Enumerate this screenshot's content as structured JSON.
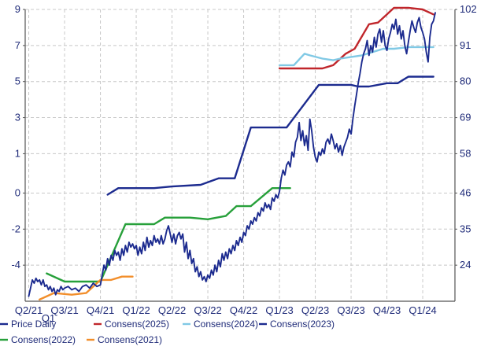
{
  "chart_data": {
    "type": "line",
    "title": "",
    "xlabel": "",
    "ylabel": "",
    "x_ticks": [
      "Q2/21",
      "Q3/21",
      "Q4/21",
      "Q1/22",
      "Q2/22",
      "Q3/22",
      "Q4/22",
      "Q1/23",
      "Q2/23",
      "Q3/23",
      "Q4/23",
      "Q1/24"
    ],
    "x_extra_label": "Q1",
    "xlim": [
      -0.1,
      11.9
    ],
    "y_left_ticks": [
      "9",
      "7",
      "5",
      "3",
      "1",
      "0",
      "-2",
      "-4"
    ],
    "y_right_ticks": [
      "102",
      "91",
      "80",
      "69",
      "58",
      "46",
      "35",
      "24"
    ],
    "ylim_right": [
      13,
      102
    ],
    "grid": true,
    "legend_position": "bottom",
    "series": [
      {
        "name": "Price Daily",
        "axis": "right",
        "color": "#1c2b8f",
        "points": [
          [
            0.0,
            14.5
          ],
          [
            0.05,
            17.0
          ],
          [
            0.1,
            19.5
          ],
          [
            0.15,
            18.5
          ],
          [
            0.2,
            20.0
          ],
          [
            0.25,
            19.0
          ],
          [
            0.3,
            19.5
          ],
          [
            0.35,
            18.0
          ],
          [
            0.4,
            19.5
          ],
          [
            0.45,
            17.5
          ],
          [
            0.5,
            18.0
          ],
          [
            0.55,
            16.5
          ],
          [
            0.6,
            17.5
          ],
          [
            0.65,
            16.0
          ],
          [
            0.7,
            17.0
          ],
          [
            0.75,
            15.0
          ],
          [
            0.8,
            16.5
          ],
          [
            0.85,
            16.0
          ],
          [
            0.9,
            17.5
          ],
          [
            0.95,
            16.5
          ],
          [
            1.0,
            17.0
          ],
          [
            1.1,
            17.5
          ],
          [
            1.2,
            16.5
          ],
          [
            1.3,
            17.0
          ],
          [
            1.4,
            16.0
          ],
          [
            1.5,
            17.5
          ],
          [
            1.6,
            18.0
          ],
          [
            1.7,
            17.0
          ],
          [
            1.8,
            18.5
          ],
          [
            1.9,
            17.5
          ],
          [
            2.0,
            18.0
          ],
          [
            2.05,
            21.0
          ],
          [
            2.1,
            24.0
          ],
          [
            2.15,
            22.5
          ],
          [
            2.2,
            26.0
          ],
          [
            2.25,
            24.0
          ],
          [
            2.3,
            27.0
          ],
          [
            2.35,
            25.5
          ],
          [
            2.4,
            28.5
          ],
          [
            2.45,
            27.0
          ],
          [
            2.5,
            28.0
          ],
          [
            2.55,
            25.5
          ],
          [
            2.6,
            29.0
          ],
          [
            2.65,
            27.0
          ],
          [
            2.7,
            30.0
          ],
          [
            2.75,
            28.0
          ],
          [
            2.8,
            31.0
          ],
          [
            2.85,
            29.5
          ],
          [
            2.9,
            30.5
          ],
          [
            2.95,
            29.0
          ],
          [
            3.0,
            30.0
          ],
          [
            3.05,
            27.0
          ],
          [
            3.1,
            29.5
          ],
          [
            3.15,
            27.5
          ],
          [
            3.2,
            31.0
          ],
          [
            3.25,
            28.5
          ],
          [
            3.3,
            32.5
          ],
          [
            3.35,
            29.5
          ],
          [
            3.4,
            31.5
          ],
          [
            3.45,
            30.0
          ],
          [
            3.5,
            33.0
          ],
          [
            3.55,
            31.0
          ],
          [
            3.6,
            32.0
          ],
          [
            3.65,
            30.5
          ],
          [
            3.7,
            33.0
          ],
          [
            3.75,
            30.5
          ],
          [
            3.8,
            32.0
          ],
          [
            3.85,
            34.5
          ],
          [
            3.9,
            36.0
          ],
          [
            3.95,
            33.5
          ],
          [
            4.0,
            31.0
          ],
          [
            4.05,
            33.5
          ],
          [
            4.1,
            30.5
          ],
          [
            4.15,
            33.0
          ],
          [
            4.2,
            34.0
          ],
          [
            4.25,
            32.0
          ],
          [
            4.3,
            33.5
          ],
          [
            4.35,
            28.0
          ],
          [
            4.4,
            31.0
          ],
          [
            4.45,
            26.0
          ],
          [
            4.5,
            28.5
          ],
          [
            4.55,
            24.5
          ],
          [
            4.6,
            26.0
          ],
          [
            4.65,
            22.0
          ],
          [
            4.7,
            23.5
          ],
          [
            4.75,
            20.5
          ],
          [
            4.8,
            22.0
          ],
          [
            4.85,
            19.5
          ],
          [
            4.9,
            20.5
          ],
          [
            4.95,
            19.0
          ],
          [
            5.0,
            21.0
          ],
          [
            5.05,
            20.0
          ],
          [
            5.1,
            22.5
          ],
          [
            5.15,
            21.0
          ],
          [
            5.2,
            24.0
          ],
          [
            5.25,
            22.0
          ],
          [
            5.3,
            25.5
          ],
          [
            5.35,
            23.5
          ],
          [
            5.4,
            27.5
          ],
          [
            5.45,
            25.5
          ],
          [
            5.5,
            28.0
          ],
          [
            5.55,
            26.0
          ],
          [
            5.6,
            29.0
          ],
          [
            5.65,
            27.5
          ],
          [
            5.7,
            30.0
          ],
          [
            5.75,
            28.5
          ],
          [
            5.8,
            31.5
          ],
          [
            5.85,
            30.0
          ],
          [
            5.9,
            32.5
          ],
          [
            5.95,
            31.0
          ],
          [
            6.0,
            34.0
          ],
          [
            6.05,
            33.0
          ],
          [
            6.1,
            36.0
          ],
          [
            6.15,
            35.0
          ],
          [
            6.2,
            37.5
          ],
          [
            6.25,
            36.5
          ],
          [
            6.3,
            38.5
          ],
          [
            6.35,
            37.5
          ],
          [
            6.4,
            40.0
          ],
          [
            6.45,
            39.0
          ],
          [
            6.5,
            41.5
          ],
          [
            6.55,
            40.5
          ],
          [
            6.6,
            43.0
          ],
          [
            6.65,
            41.5
          ],
          [
            6.7,
            42.5
          ],
          [
            6.75,
            41.0
          ],
          [
            6.8,
            44.5
          ],
          [
            6.85,
            43.5
          ],
          [
            6.9,
            45.5
          ],
          [
            6.95,
            44.5
          ],
          [
            7.0,
            46.5
          ],
          [
            7.05,
            50.5
          ],
          [
            7.1,
            53.0
          ],
          [
            7.15,
            51.5
          ],
          [
            7.2,
            54.5
          ],
          [
            7.25,
            55.5
          ],
          [
            7.3,
            54.0
          ],
          [
            7.35,
            58.5
          ],
          [
            7.4,
            57.0
          ],
          [
            7.45,
            61.5
          ],
          [
            7.5,
            63.0
          ],
          [
            7.55,
            67.5
          ],
          [
            7.6,
            62.0
          ],
          [
            7.65,
            65.0
          ],
          [
            7.7,
            60.5
          ],
          [
            7.75,
            63.5
          ],
          [
            7.8,
            59.0
          ],
          [
            7.85,
            68.5
          ],
          [
            7.9,
            65.0
          ],
          [
            7.95,
            60.0
          ],
          [
            8.0,
            57.0
          ],
          [
            8.05,
            55.5
          ],
          [
            8.1,
            58.5
          ],
          [
            8.15,
            57.5
          ],
          [
            8.2,
            59.5
          ],
          [
            8.25,
            58.0
          ],
          [
            8.3,
            61.5
          ],
          [
            8.35,
            62.5
          ],
          [
            8.4,
            61.0
          ],
          [
            8.45,
            64.0
          ],
          [
            8.5,
            62.0
          ],
          [
            8.55,
            59.5
          ],
          [
            8.6,
            61.0
          ],
          [
            8.65,
            58.5
          ],
          [
            8.7,
            60.5
          ],
          [
            8.75,
            57.5
          ],
          [
            8.8,
            60.0
          ],
          [
            8.85,
            61.5
          ],
          [
            8.9,
            63.0
          ],
          [
            8.95,
            65.5
          ],
          [
            9.0,
            64.0
          ],
          [
            9.05,
            68.5
          ],
          [
            9.1,
            72.5
          ],
          [
            9.15,
            76.0
          ],
          [
            9.2,
            79.5
          ],
          [
            9.25,
            82.5
          ],
          [
            9.3,
            86.0
          ],
          [
            9.35,
            88.5
          ],
          [
            9.4,
            90.0
          ],
          [
            9.45,
            92.5
          ],
          [
            9.5,
            88.0
          ],
          [
            9.55,
            91.0
          ],
          [
            9.6,
            89.0
          ],
          [
            9.65,
            93.5
          ],
          [
            9.7,
            90.5
          ],
          [
            9.75,
            94.5
          ],
          [
            9.8,
            96.0
          ],
          [
            9.85,
            92.0
          ],
          [
            9.9,
            95.5
          ],
          [
            9.95,
            91.0
          ],
          [
            10.0,
            89.5
          ],
          [
            10.05,
            93.0
          ],
          [
            10.1,
            95.0
          ],
          [
            10.15,
            97.5
          ],
          [
            10.2,
            96.0
          ],
          [
            10.25,
            99.0
          ],
          [
            10.3,
            94.5
          ],
          [
            10.35,
            97.0
          ],
          [
            10.4,
            93.0
          ],
          [
            10.45,
            95.5
          ],
          [
            10.5,
            91.0
          ],
          [
            10.55,
            88.5
          ],
          [
            10.6,
            92.0
          ],
          [
            10.65,
            95.5
          ],
          [
            10.7,
            98.5
          ],
          [
            10.75,
            96.5
          ],
          [
            10.8,
            95.0
          ],
          [
            10.85,
            98.0
          ],
          [
            10.9,
            99.5
          ],
          [
            10.95,
            96.5
          ],
          [
            11.0,
            95.0
          ],
          [
            11.05,
            93.0
          ],
          [
            11.1,
            89.0
          ],
          [
            11.15,
            86.0
          ],
          [
            11.2,
            93.5
          ],
          [
            11.25,
            97.5
          ],
          [
            11.3,
            98.5
          ],
          [
            11.35,
            101.0
          ]
        ]
      },
      {
        "name": "Consens(2025)",
        "axis": "right",
        "color": "#c0262b",
        "points": [
          [
            7.0,
            84.0
          ],
          [
            8.2,
            84.0
          ],
          [
            8.5,
            85.0
          ],
          [
            8.7,
            87.0
          ],
          [
            8.85,
            88.5
          ],
          [
            9.1,
            90.0
          ],
          [
            9.5,
            97.5
          ],
          [
            9.75,
            98.0
          ],
          [
            10.0,
            100.5
          ],
          [
            10.2,
            102.5
          ],
          [
            10.6,
            102.5
          ],
          [
            11.0,
            102.0
          ],
          [
            11.3,
            100.5
          ]
        ]
      },
      {
        "name": "Consens(2024)",
        "axis": "right",
        "color": "#80c9e5",
        "points": [
          [
            7.0,
            85.0
          ],
          [
            7.4,
            85.0
          ],
          [
            7.7,
            88.5
          ],
          [
            7.85,
            88.0
          ],
          [
            8.2,
            87.0
          ],
          [
            8.5,
            86.5
          ],
          [
            8.7,
            87.0
          ],
          [
            9.0,
            87.5
          ],
          [
            9.3,
            88.0
          ],
          [
            9.6,
            89.0
          ],
          [
            9.9,
            90.0
          ],
          [
            10.2,
            90.0
          ],
          [
            10.6,
            90.5
          ],
          [
            11.0,
            90.5
          ],
          [
            11.3,
            90.5
          ]
        ]
      },
      {
        "name": "Consens(2023)",
        "axis": "right",
        "color": "#1c2b8f",
        "points": [
          [
            2.2,
            45.5
          ],
          [
            2.5,
            47.5
          ],
          [
            3.0,
            47.5
          ],
          [
            3.5,
            47.5
          ],
          [
            4.0,
            48.0
          ],
          [
            4.8,
            48.5
          ],
          [
            5.3,
            50.5
          ],
          [
            5.75,
            50.5
          ],
          [
            6.2,
            66.0
          ],
          [
            7.0,
            66.0
          ],
          [
            7.2,
            66.0
          ],
          [
            8.1,
            79.0
          ],
          [
            8.5,
            79.0
          ],
          [
            9.0,
            79.0
          ],
          [
            9.2,
            78.5
          ],
          [
            9.5,
            78.5
          ],
          [
            10.0,
            79.5
          ],
          [
            10.3,
            79.5
          ],
          [
            10.6,
            81.5
          ],
          [
            11.0,
            81.5
          ],
          [
            11.3,
            81.5
          ]
        ]
      },
      {
        "name": "Consens(2022)",
        "axis": "right",
        "color": "#27a03a",
        "points": [
          [
            0.5,
            21.5
          ],
          [
            1.0,
            19.0
          ],
          [
            2.0,
            19.0
          ],
          [
            2.7,
            36.5
          ],
          [
            3.5,
            36.5
          ],
          [
            3.8,
            38.5
          ],
          [
            4.5,
            38.5
          ],
          [
            5.0,
            38.0
          ],
          [
            5.5,
            39.0
          ],
          [
            5.8,
            42.0
          ],
          [
            6.2,
            42.0
          ],
          [
            6.8,
            47.5
          ],
          [
            7.3,
            47.5
          ]
        ]
      },
      {
        "name": "Consens(2021)",
        "axis": "right",
        "color": "#f28e2b",
        "points": [
          [
            0.3,
            13.5
          ],
          [
            0.7,
            15.5
          ],
          [
            1.2,
            15.0
          ],
          [
            1.6,
            15.5
          ],
          [
            2.0,
            19.5
          ],
          [
            2.3,
            19.5
          ],
          [
            2.6,
            20.5
          ],
          [
            2.9,
            20.5
          ]
        ]
      }
    ]
  }
}
